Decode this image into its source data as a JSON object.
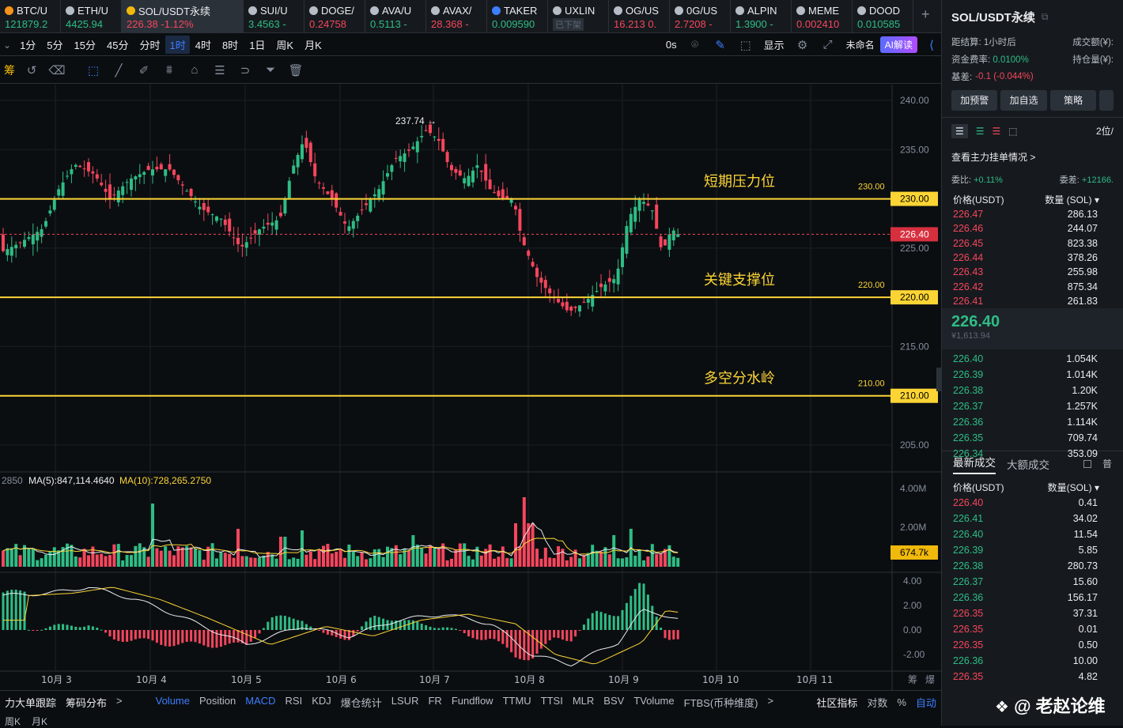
{
  "tickers": [
    {
      "name": "BTC/U",
      "price": "121879.2",
      "dir": "up",
      "icon": "btc-icon",
      "color": "#f7931a"
    },
    {
      "name": "ETH/U",
      "price": "4425.94",
      "dir": "up",
      "icon": "eth-icon",
      "color": "#b7bdc6"
    },
    {
      "name": "SOL/USDT永续",
      "price": "226.38",
      "change": "-1.12%",
      "dir": "dn",
      "icon": "bnb-icon",
      "color": "#f0b90b",
      "active": true
    },
    {
      "name": "SUI/U",
      "price": "3.4563 -",
      "dir": "up",
      "icon": "sui-icon",
      "color": "#b7bdc6"
    },
    {
      "name": "DOGE/",
      "price": "0.24758",
      "dir": "dn",
      "icon": "doge-icon",
      "color": "#b7bdc6"
    },
    {
      "name": "AVA/U",
      "price": "0.5113 -",
      "dir": "up",
      "icon": "ava-icon",
      "color": "#b7bdc6"
    },
    {
      "name": "AVAX/",
      "price": "28.368 -",
      "dir": "dn",
      "icon": "avax-icon",
      "color": "#b7bdc6"
    },
    {
      "name": "TAKER",
      "price": "0.009590",
      "dir": "up",
      "icon": "taker-icon",
      "color": "#3d7eff"
    },
    {
      "name": "UXLIN",
      "price": "已下架",
      "dir": "none",
      "icon": "uxlink-icon",
      "color": "#b7bdc6"
    },
    {
      "name": "OG/US",
      "price": "16.213 0.",
      "dir": "dn",
      "icon": "og-icon",
      "color": "#b7bdc6"
    },
    {
      "name": "0G/US",
      "price": "2.7208 -",
      "dir": "dn",
      "icon": "0g-icon",
      "color": "#b7bdc6"
    },
    {
      "name": "ALPIN",
      "price": "1.3900 -",
      "dir": "up",
      "icon": "alpine-icon",
      "color": "#b7bdc6"
    },
    {
      "name": "MEME",
      "price": "0.002410",
      "dir": "dn",
      "icon": "meme-icon",
      "color": "#b7bdc6"
    },
    {
      "name": "DOOD",
      "price": "0.010585",
      "dir": "up",
      "icon": "dood-icon",
      "color": "#b7bdc6"
    }
  ],
  "timeframes": [
    "1分",
    "5分",
    "15分",
    "45分",
    "分时",
    "1时",
    "4时",
    "8时",
    "1日",
    "周K",
    "月K"
  ],
  "selected_tf": "1时",
  "tf_right": {
    "countdown": "0s",
    "display": "显示",
    "unnamed": "未命名",
    "ai": "AI解读"
  },
  "toolbar_left": "筹",
  "price_axis": [
    "240.00",
    "235.00",
    "230.00",
    "225.00",
    "220.00",
    "215.00",
    "210.00",
    "205.00"
  ],
  "levels": [
    {
      "price": "230.00",
      "label": "短期压力位"
    },
    {
      "price": "220.00",
      "label": "关键支撑位"
    },
    {
      "price": "210.00",
      "label": "多空分水岭"
    }
  ],
  "current_price": "226.40",
  "high_label": "237.74",
  "volume_legend": {
    "prefix": "2850",
    "ma5": "MA(5):847,114.4640",
    "ma10": "MA(10):728,265.2750"
  },
  "volume_axis": [
    "4.00M",
    "2.00M"
  ],
  "volume_current": "674.7k",
  "macd_axis": [
    "4.00",
    "2.00",
    "0.00",
    "-2.00"
  ],
  "dates": [
    "10月 3",
    "10月 4",
    "10月 5",
    "10月 6",
    "10月 7",
    "10月 8",
    "10月 9",
    "10月 10",
    "10月 11"
  ],
  "date_right": [
    "筹",
    "爆"
  ],
  "indicators": [
    "力大单跟踪",
    "筹码分布",
    ">",
    "Volume",
    "Position",
    "MACD",
    "RSI",
    "KDJ",
    "爆仓统计",
    "LSUR",
    "FR",
    "Fundflow",
    "TTMU",
    "TTSI",
    "MLR",
    "BSV",
    "TVolume",
    "FTBS(币种维度)",
    ">"
  ],
  "indicators_active": [
    "Volume",
    "MACD"
  ],
  "bottom_right": [
    "社区指标",
    "对数",
    "%",
    "自动"
  ],
  "bottom_last": [
    "周K",
    "月K"
  ],
  "watermark": "@ 老赵论维",
  "right": {
    "title": "SOL/USDT永续",
    "settle_label": "距结算:",
    "settle_val": "1小时后",
    "vol_label": "成交额(¥):",
    "fund_label": "资金费率:",
    "fund_val": "0.0100%",
    "oi_label": "持仓量(¥):",
    "basis_label": "基差:",
    "basis_val": "-0.1 (-0.044%)",
    "buttons": [
      "加预警",
      "加自选",
      "策略"
    ],
    "depth": "2位/",
    "main_orders": "查看主力挂单情况 >",
    "bid_ratio_label": "委比:",
    "bid_ratio": "+0.11%",
    "bid_diff_label": "委差:",
    "bid_diff": "+12166.",
    "col_price": "价格(USDT)",
    "col_qty": "数量 (SOL) ▾",
    "asks": [
      [
        "226.47",
        "286.13"
      ],
      [
        "226.46",
        "244.07"
      ],
      [
        "226.45",
        "823.38"
      ],
      [
        "226.44",
        "378.26"
      ],
      [
        "226.43",
        "255.98"
      ],
      [
        "226.42",
        "875.34"
      ],
      [
        "226.41",
        "261.83"
      ]
    ],
    "last": "226.40",
    "last_cny": "¥1,613.94",
    "bids": [
      [
        "226.40",
        "1.054K"
      ],
      [
        "226.39",
        "1.014K"
      ],
      [
        "226.38",
        "1.20K"
      ],
      [
        "226.37",
        "1.257K"
      ],
      [
        "226.36",
        "1.114K"
      ],
      [
        "226.35",
        "709.74"
      ],
      [
        "226.34",
        "353.09"
      ]
    ],
    "trades_tab": "最新成交",
    "big_tab": "大额成交",
    "check": "普",
    "trade_col_price": "价格(USDT)",
    "trade_col_qty": "数量(SOL) ▾",
    "trades": [
      [
        "226.40",
        "0.41",
        "dn"
      ],
      [
        "226.41",
        "34.02",
        "up"
      ],
      [
        "226.40",
        "11.54",
        "up"
      ],
      [
        "226.39",
        "5.85",
        "up"
      ],
      [
        "226.38",
        "280.73",
        "up"
      ],
      [
        "226.37",
        "15.60",
        "up"
      ],
      [
        "226.36",
        "156.17",
        "up"
      ],
      [
        "226.35",
        "37.31",
        "dn"
      ],
      [
        "226.35",
        "0.01",
        "dn"
      ],
      [
        "226.35",
        "0.50",
        "dn"
      ],
      [
        "226.36",
        "10.00",
        "up"
      ],
      [
        "226.35",
        "4.82",
        "dn"
      ]
    ]
  },
  "colors": {
    "up": "#2ebd85",
    "down": "#f6465d",
    "level": "#fcd535",
    "accent": "#3d7eff"
  }
}
